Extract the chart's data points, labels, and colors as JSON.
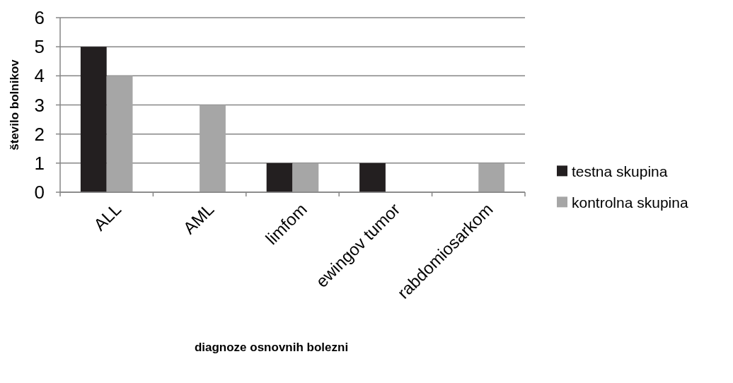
{
  "chart_data": {
    "type": "bar",
    "xlabel": "diagnoze osnovnih bolezni",
    "ylabel": "število bolnikov",
    "categories": [
      "ALL",
      "AML",
      "limfom",
      "ewingov tumor",
      "rabdomiosarkom"
    ],
    "series": [
      {
        "name": "testna skupina",
        "color": "#231f20",
        "values": [
          5,
          0,
          1,
          1,
          0
        ]
      },
      {
        "name": "kontrolna skupina",
        "color": "#a6a6a6",
        "values": [
          4,
          3,
          1,
          0,
          1
        ]
      }
    ],
    "ylim": [
      0,
      6
    ],
    "yticks": [
      0,
      1,
      2,
      3,
      4,
      5,
      6
    ],
    "grid": "y",
    "legend": "right"
  }
}
